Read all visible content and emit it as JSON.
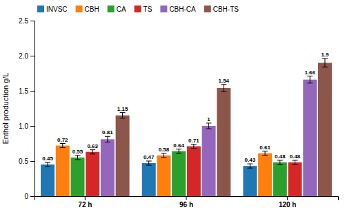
{
  "chart_data": {
    "type": "bar",
    "categories": [
      "72 h",
      "96 h",
      "120 h"
    ],
    "series": [
      {
        "name": "INVSC",
        "values": [
          0.45,
          0.47,
          0.43
        ],
        "errors": [
          0.03,
          0.03,
          0.03
        ]
      },
      {
        "name": "CBH",
        "values": [
          0.72,
          0.58,
          0.61
        ],
        "errors": [
          0.03,
          0.03,
          0.03
        ]
      },
      {
        "name": "CA",
        "values": [
          0.55,
          0.64,
          0.48
        ],
        "errors": [
          0.03,
          0.03,
          0.03
        ]
      },
      {
        "name": "TS",
        "values": [
          0.63,
          0.71,
          0.48
        ],
        "errors": [
          0.03,
          0.03,
          0.03
        ]
      },
      {
        "name": "CBH-CA",
        "values": [
          0.81,
          1.0,
          1.66
        ],
        "errors": [
          0.04,
          0.04,
          0.05
        ]
      },
      {
        "name": "CBH-TS",
        "values": [
          1.15,
          1.54,
          1.9
        ],
        "errors": [
          0.04,
          0.05,
          0.06
        ]
      }
    ],
    "ylabel": "Enthol production g/L",
    "ylim": [
      0,
      2.5
    ],
    "yticks": [
      0,
      0.5,
      {
        "value": 1.0,
        "label": "1.0"
      },
      1.5,
      {
        "value": 2.0,
        "label": "2.0"
      },
      2.5
    ],
    "data_labels": true,
    "legend": "upper left",
    "grid": false
  }
}
